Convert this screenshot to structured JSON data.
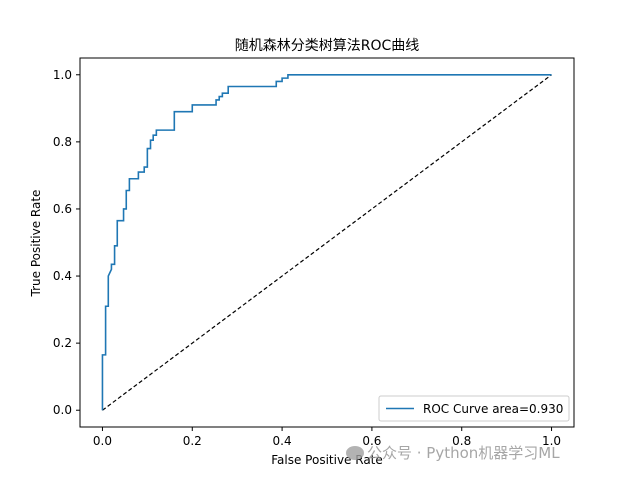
{
  "chart_data": {
    "type": "line",
    "title": "随机森林分类树算法ROC曲线",
    "xlabel": "False Positive Rate",
    "ylabel": "True Positive Rate",
    "xlim": [
      -0.05,
      1.05
    ],
    "ylim": [
      -0.05,
      1.05
    ],
    "xticks": [
      "0.0",
      "0.2",
      "0.4",
      "0.6",
      "0.8",
      "1.0"
    ],
    "yticks": [
      "0.0",
      "0.2",
      "0.4",
      "0.6",
      "0.8",
      "1.0"
    ],
    "grid": false,
    "legend_placement": "lower-right",
    "series": [
      {
        "name": "ROC Curve area=0.930",
        "color": "#1f77b4",
        "x": [
          0.0,
          0.0,
          0.007,
          0.007,
          0.013,
          0.013,
          0.013,
          0.02,
          0.02,
          0.027,
          0.027,
          0.033,
          0.033,
          0.047,
          0.047,
          0.053,
          0.053,
          0.06,
          0.06,
          0.08,
          0.08,
          0.093,
          0.093,
          0.1,
          0.1,
          0.107,
          0.107,
          0.113,
          0.113,
          0.12,
          0.12,
          0.16,
          0.16,
          0.2,
          0.2,
          0.253,
          0.253,
          0.26,
          0.26,
          0.267,
          0.267,
          0.28,
          0.28,
          0.387,
          0.387,
          0.4,
          0.4,
          0.413,
          0.413,
          1.0
        ],
        "y": [
          0.0,
          0.165,
          0.165,
          0.31,
          0.31,
          0.37,
          0.4,
          0.42,
          0.435,
          0.435,
          0.49,
          0.49,
          0.565,
          0.565,
          0.6,
          0.6,
          0.655,
          0.655,
          0.69,
          0.69,
          0.71,
          0.71,
          0.725,
          0.725,
          0.78,
          0.78,
          0.805,
          0.805,
          0.82,
          0.82,
          0.835,
          0.835,
          0.89,
          0.89,
          0.91,
          0.91,
          0.925,
          0.925,
          0.935,
          0.935,
          0.945,
          0.945,
          0.965,
          0.965,
          0.98,
          0.98,
          0.99,
          0.99,
          1.0,
          1.0
        ]
      }
    ],
    "reference_line": {
      "style": "dashed",
      "color": "#000000",
      "x": [
        0,
        1
      ],
      "y": [
        0,
        1
      ]
    }
  },
  "watermark": {
    "text": "公众号 · Python机器学习ML"
  }
}
